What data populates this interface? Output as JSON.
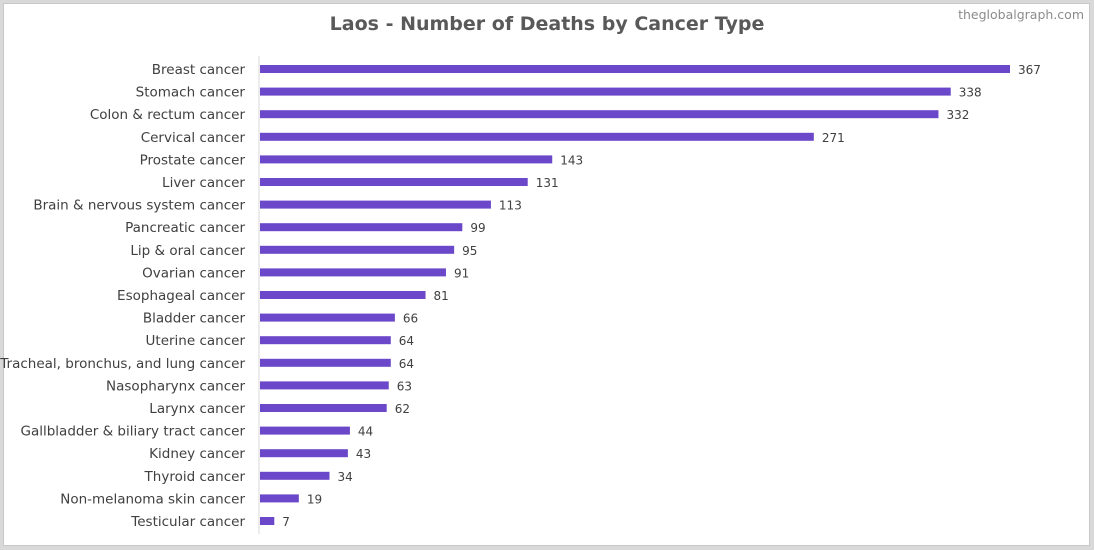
{
  "chart_data": {
    "type": "bar",
    "orientation": "horizontal",
    "title": "Laos - Number of Deaths by Cancer Type",
    "watermark": "theglobalgraph.com",
    "categories": [
      "Breast cancer",
      "Stomach cancer",
      "Colon & rectum cancer",
      "Cervical cancer",
      "Prostate cancer",
      "Liver cancer",
      "Brain & nervous system cancer",
      "Pancreatic cancer",
      "Lip & oral cancer",
      "Ovarian cancer",
      "Esophageal cancer",
      "Bladder cancer",
      "Uterine cancer",
      "Tracheal, bronchus, and lung cancer",
      "Nasopharynx cancer",
      "Larynx cancer",
      "Gallbladder & biliary tract cancer",
      "Kidney cancer",
      "Thyroid cancer",
      "Non-melanoma skin cancer",
      "Testicular cancer"
    ],
    "values": [
      367,
      338,
      332,
      271,
      143,
      131,
      113,
      99,
      95,
      91,
      81,
      66,
      64,
      64,
      63,
      62,
      44,
      43,
      34,
      19,
      7
    ],
    "xlabel": "",
    "ylabel": "",
    "xlim": [
      0,
      367
    ],
    "grid": false,
    "data_labels": true,
    "bar_color": "#6a48c9",
    "label_color": "#404040",
    "axis_color": "#d9d9d9"
  }
}
